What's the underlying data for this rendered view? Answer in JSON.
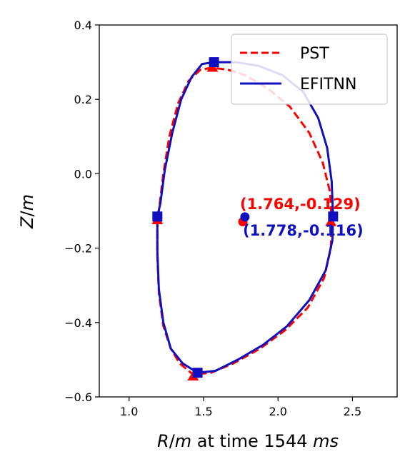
{
  "chart_data": {
    "type": "line",
    "title": "",
    "xlabel_parts": [
      "R",
      "/",
      "m",
      " at time 1544 ",
      "ms"
    ],
    "ylabel_parts": [
      "Z",
      "/",
      "m"
    ],
    "xlim": [
      0.8,
      2.8
    ],
    "ylim": [
      -0.6,
      0.4
    ],
    "x_ticks": [
      1.0,
      1.5,
      2.0,
      2.5
    ],
    "x_tick_labels": [
      "1.0",
      "1.5",
      "2.0",
      "2.5"
    ],
    "y_ticks": [
      0.4,
      0.2,
      0.0,
      -0.2,
      -0.4,
      -0.6
    ],
    "y_tick_labels": [
      "0.4",
      "0.2",
      "0.0",
      "−0.2",
      "−0.4",
      "−0.6"
    ],
    "legend_position": "top-right",
    "series": [
      {
        "name": "PST",
        "color": "#ff0000",
        "style": "dashed",
        "marker": "triangle",
        "points": [
          [
            1.56,
            0.285
          ],
          [
            1.48,
            0.28
          ],
          [
            1.4,
            0.25
          ],
          [
            1.33,
            0.19
          ],
          [
            1.27,
            0.1
          ],
          [
            1.23,
            0.0
          ],
          [
            1.2,
            -0.1
          ],
          [
            1.19,
            -0.125
          ],
          [
            1.19,
            -0.22
          ],
          [
            1.2,
            -0.32
          ],
          [
            1.23,
            -0.41
          ],
          [
            1.28,
            -0.47
          ],
          [
            1.34,
            -0.51
          ],
          [
            1.43,
            -0.54
          ],
          [
            1.55,
            -0.535
          ],
          [
            1.7,
            -0.51
          ],
          [
            1.88,
            -0.47
          ],
          [
            2.05,
            -0.42
          ],
          [
            2.2,
            -0.36
          ],
          [
            2.31,
            -0.28
          ],
          [
            2.355,
            -0.2
          ],
          [
            2.36,
            -0.13
          ],
          [
            2.35,
            -0.05
          ],
          [
            2.3,
            0.03
          ],
          [
            2.21,
            0.11
          ],
          [
            2.08,
            0.18
          ],
          [
            1.93,
            0.23
          ],
          [
            1.78,
            0.265
          ],
          [
            1.66,
            0.28
          ],
          [
            1.56,
            0.285
          ]
        ],
        "markers": [
          [
            1.56,
            0.285
          ],
          [
            1.19,
            -0.125
          ],
          [
            1.43,
            -0.545
          ],
          [
            2.355,
            -0.13
          ]
        ],
        "axis_point": [
          1.764,
          -0.129
        ],
        "annotation": "(1.764,-0.129)"
      },
      {
        "name": "EFITNN",
        "color": "#1010c0",
        "style": "solid",
        "marker": "square",
        "points": [
          [
            1.57,
            0.3
          ],
          [
            1.49,
            0.295
          ],
          [
            1.42,
            0.26
          ],
          [
            1.35,
            0.2
          ],
          [
            1.29,
            0.11
          ],
          [
            1.24,
            0.01
          ],
          [
            1.21,
            -0.08
          ],
          [
            1.19,
            -0.115
          ],
          [
            1.19,
            -0.21
          ],
          [
            1.2,
            -0.31
          ],
          [
            1.23,
            -0.4
          ],
          [
            1.28,
            -0.47
          ],
          [
            1.36,
            -0.51
          ],
          [
            1.46,
            -0.535
          ],
          [
            1.58,
            -0.53
          ],
          [
            1.73,
            -0.5
          ],
          [
            1.9,
            -0.46
          ],
          [
            2.06,
            -0.41
          ],
          [
            2.21,
            -0.34
          ],
          [
            2.32,
            -0.26
          ],
          [
            2.365,
            -0.18
          ],
          [
            2.37,
            -0.115
          ],
          [
            2.36,
            -0.02
          ],
          [
            2.33,
            0.07
          ],
          [
            2.27,
            0.15
          ],
          [
            2.17,
            0.22
          ],
          [
            2.03,
            0.265
          ],
          [
            1.87,
            0.29
          ],
          [
            1.72,
            0.3
          ],
          [
            1.57,
            0.3
          ]
        ],
        "markers": [
          [
            1.57,
            0.3
          ],
          [
            1.19,
            -0.115
          ],
          [
            1.46,
            -0.535
          ],
          [
            2.37,
            -0.115
          ]
        ],
        "axis_point": [
          1.778,
          -0.116
        ],
        "annotation": "(1.778,-0.116)"
      }
    ]
  }
}
